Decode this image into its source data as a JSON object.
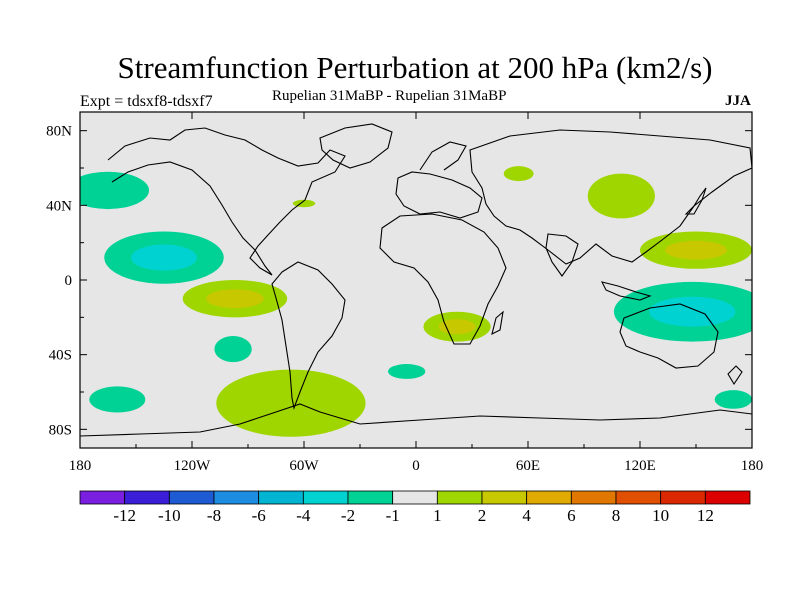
{
  "title": "Streamfunction Perturbation at 200 hPa (km2/s)",
  "subtitle_left": "Expt = tdsxf8-tdsxf7",
  "subtitle_center": "Rupelian  31MaBP - Rupelian  31MaBP",
  "subtitle_right": "JJA",
  "chart_data": {
    "type": "heatmap",
    "title": "Streamfunction Perturbation at 200 hPa (km2/s)",
    "xlabel": "",
    "ylabel": "",
    "xlim": [
      -180,
      180
    ],
    "ylim": [
      -90,
      90
    ],
    "x_ticks": [
      {
        "value": -180,
        "label": "180"
      },
      {
        "value": -120,
        "label": "120W"
      },
      {
        "value": -60,
        "label": "60W"
      },
      {
        "value": 0,
        "label": "0"
      },
      {
        "value": 60,
        "label": "60E"
      },
      {
        "value": 120,
        "label": "120E"
      },
      {
        "value": 180,
        "label": "180"
      }
    ],
    "y_ticks": [
      {
        "value": 80,
        "label": "80N"
      },
      {
        "value": 40,
        "label": "40N"
      },
      {
        "value": 0,
        "label": "0"
      },
      {
        "value": -40,
        "label": "40S"
      },
      {
        "value": -80,
        "label": "80S"
      }
    ],
    "colorbar": {
      "labels": [
        "-12",
        "-10",
        "-8",
        "-6",
        "-4",
        "-2",
        "-1",
        "1",
        "2",
        "4",
        "6",
        "8",
        "10",
        "12"
      ],
      "colors": [
        "#7a1ee0",
        "#3a1ed8",
        "#1e5ad2",
        "#1e8ce0",
        "#00b4d2",
        "#00d2d2",
        "#00d296",
        "#e6e6e6",
        "#a0d600",
        "#c8c800",
        "#e0aa00",
        "#e07800",
        "#e05000",
        "#dc2800",
        "#dc0000"
      ]
    },
    "regions": [
      {
        "name": "north-pacific-west",
        "lon": -165,
        "lat": 48,
        "rx": 22,
        "ry": 10,
        "value": -1.5
      },
      {
        "name": "central-pacific",
        "lon": -135,
        "lat": 12,
        "rx": 32,
        "ry": 14,
        "value": -2.5
      },
      {
        "name": "east-pacific-tropics",
        "lon": -97,
        "lat": -10,
        "rx": 28,
        "ry": 10,
        "value": 2.5
      },
      {
        "name": "southeast-pacific",
        "lon": -98,
        "lat": -37,
        "rx": 10,
        "ry": 7,
        "value": -1.5
      },
      {
        "name": "south-pacific-west",
        "lon": -160,
        "lat": -64,
        "rx": 15,
        "ry": 7,
        "value": -1.5
      },
      {
        "name": "drake-passage",
        "lon": -67,
        "lat": -66,
        "rx": 40,
        "ry": 18,
        "value": 1.5
      },
      {
        "name": "south-atlantic",
        "lon": -5,
        "lat": -49,
        "rx": 10,
        "ry": 4,
        "value": -1.5
      },
      {
        "name": "southern-africa",
        "lon": 22,
        "lat": -25,
        "rx": 18,
        "ry": 8,
        "value": 2.5
      },
      {
        "name": "north-atlantic",
        "lon": -60,
        "lat": 41,
        "rx": 6,
        "ry": 2,
        "value": 1.5
      },
      {
        "name": "central-asia",
        "lon": 55,
        "lat": 57,
        "rx": 8,
        "ry": 4,
        "value": 1.5
      },
      {
        "name": "north-pacific-east",
        "lon": 110,
        "lat": 45,
        "rx": 18,
        "ry": 12,
        "value": 1.5
      },
      {
        "name": "west-pacific-subtropics",
        "lon": 150,
        "lat": 16,
        "rx": 30,
        "ry": 10,
        "value": 3
      },
      {
        "name": "australia-indian-ocean",
        "lon": 148,
        "lat": -17,
        "rx": 42,
        "ry": 16,
        "value": -3
      },
      {
        "name": "southern-ocean-east",
        "lon": 170,
        "lat": -64,
        "rx": 10,
        "ry": 5,
        "value": -1.5
      }
    ]
  }
}
